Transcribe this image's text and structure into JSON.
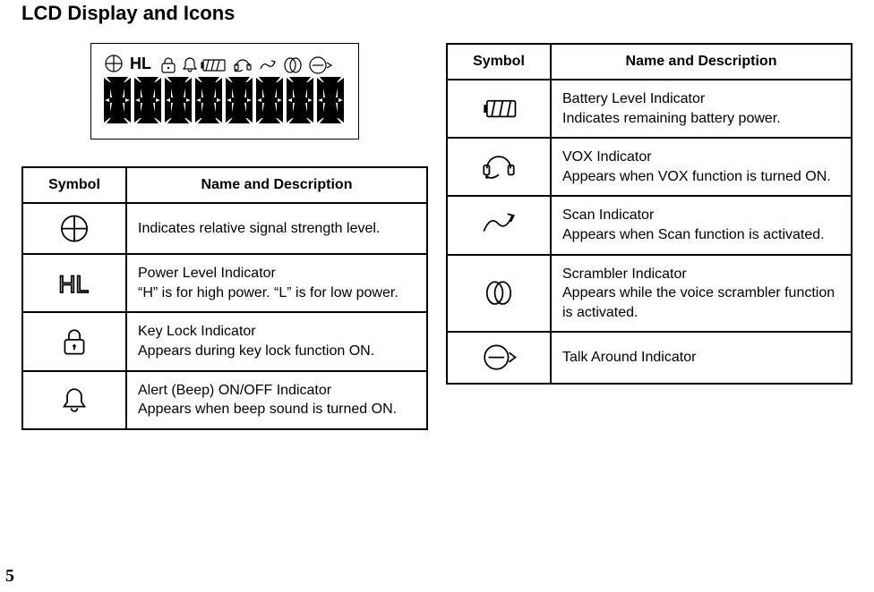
{
  "title": "LCD Display and Icons",
  "page_number": "5",
  "columns": {
    "symbol": "Symbol",
    "desc": "Name and Description"
  },
  "left_rows": [
    {
      "icon": "signal",
      "text": "Indicates relative signal strength level."
    },
    {
      "icon": "hl",
      "text": "Power Level Indicator\n“H” is for high power. “L” is for low power."
    },
    {
      "icon": "lock",
      "text": "Key Lock Indicator\nAppears during key lock function ON."
    },
    {
      "icon": "bell",
      "text": "Alert (Beep) ON/OFF Indicator\nAppears when beep sound is turned ON."
    }
  ],
  "right_rows": [
    {
      "icon": "battery",
      "text": "Battery Level Indicator\nIndicates remaining battery power."
    },
    {
      "icon": "headset",
      "text": "VOX Indicator\nAppears when VOX function is turned ON."
    },
    {
      "icon": "scan",
      "text": "Scan Indicator\nAppears when Scan function is activated."
    },
    {
      "icon": "scrambler",
      "text": "Scrambler Indicator\nAppears while the voice scrambler function is activated."
    },
    {
      "icon": "talkaround",
      "text": "Talk Around Indicator"
    }
  ],
  "style": {
    "font_family": "Arial",
    "title_fontsize": 22,
    "body_fontsize": 16,
    "border_color": "#000000",
    "bg_color": "#ffffff",
    "text_color": "#000000",
    "icon_box_size": 44
  }
}
